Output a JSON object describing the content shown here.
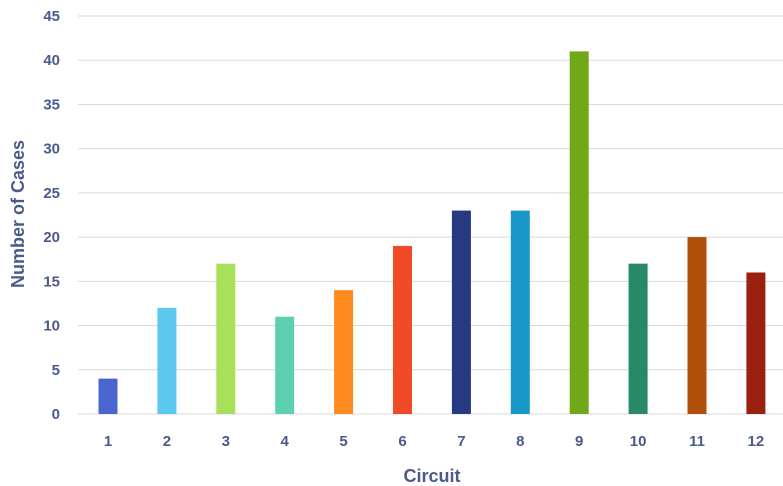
{
  "chart_data": {
    "type": "bar",
    "title": "",
    "xlabel": "Circuit",
    "ylabel": "Number of Cases",
    "ylim": [
      0,
      45
    ],
    "yticks": [
      0,
      5,
      10,
      15,
      20,
      25,
      30,
      35,
      40,
      45
    ],
    "grid": true,
    "legend": "none",
    "categories": [
      "1",
      "2",
      "3",
      "4",
      "5",
      "6",
      "7",
      "8",
      "9",
      "10",
      "11",
      "12"
    ],
    "values": [
      4,
      12,
      17,
      11,
      14,
      19,
      23,
      23,
      41,
      17,
      20,
      16
    ],
    "colors": [
      "#4a64d0",
      "#5cc8f0",
      "#a8e05a",
      "#5cd0b0",
      "#ff8a20",
      "#f04a28",
      "#253a80",
      "#1898c8",
      "#70a818",
      "#28886a",
      "#b05008",
      "#9a2010"
    ]
  }
}
